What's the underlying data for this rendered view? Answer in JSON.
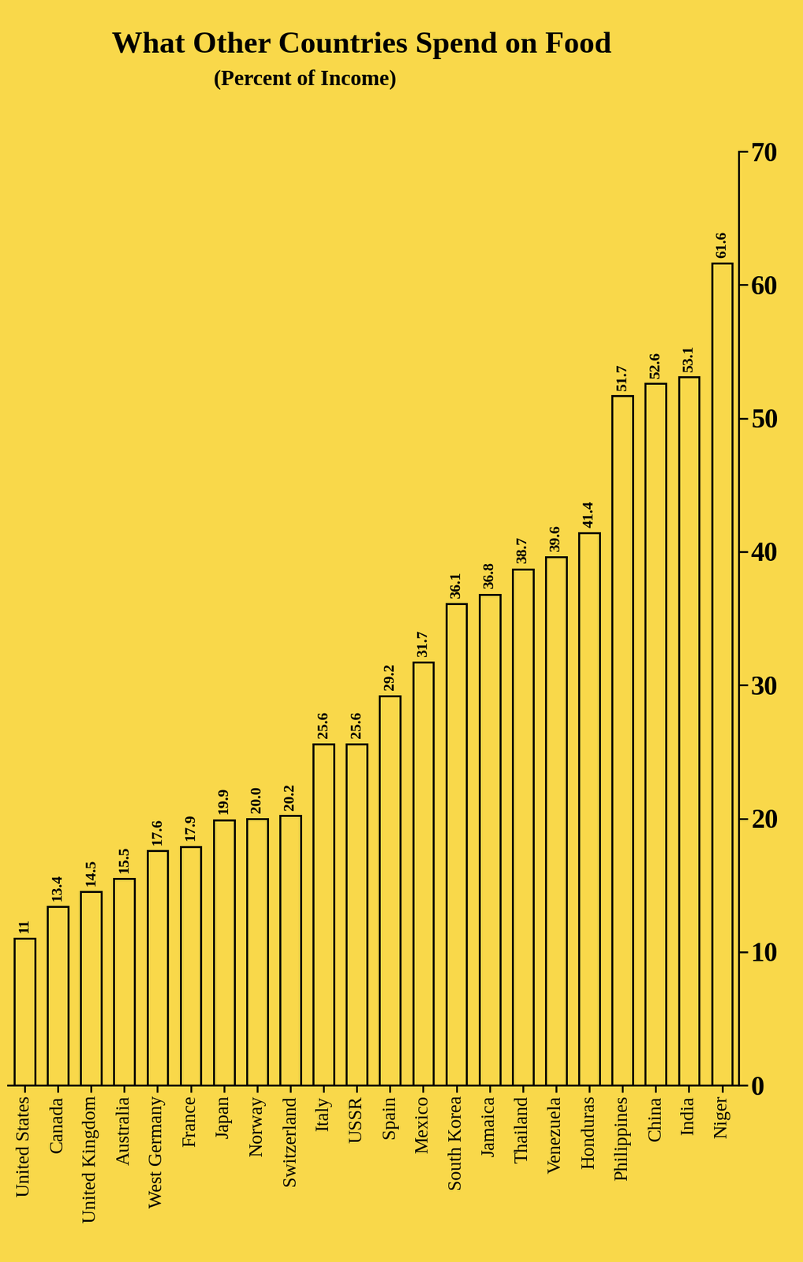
{
  "chart_data": {
    "type": "bar",
    "title": "What Other Countries Spend on Food",
    "subtitle": "(Percent of Income)",
    "categories": [
      "United States",
      "Canada",
      "United Kingdom",
      "Australia",
      "West Germany",
      "France",
      "Japan",
      "Norway",
      "Switzerland",
      "Italy",
      "USSR",
      "Spain",
      "Mexico",
      "South Korea",
      "Jamaica",
      "Thailand",
      "Venezuela",
      "Honduras",
      "Philippines",
      "China",
      "India",
      "Niger"
    ],
    "values": [
      11,
      13.4,
      14.5,
      15.5,
      17.6,
      17.9,
      19.9,
      20.0,
      20.2,
      25.6,
      25.6,
      29.2,
      31.7,
      36.1,
      36.8,
      38.7,
      39.6,
      41.4,
      51.7,
      52.6,
      53.1,
      61.6
    ],
    "color": "#f9d84a",
    "ylim": [
      0,
      70
    ],
    "yticks": [
      0,
      10,
      20,
      30,
      40,
      50,
      60,
      70
    ],
    "grid": false,
    "data_labels": true
  }
}
